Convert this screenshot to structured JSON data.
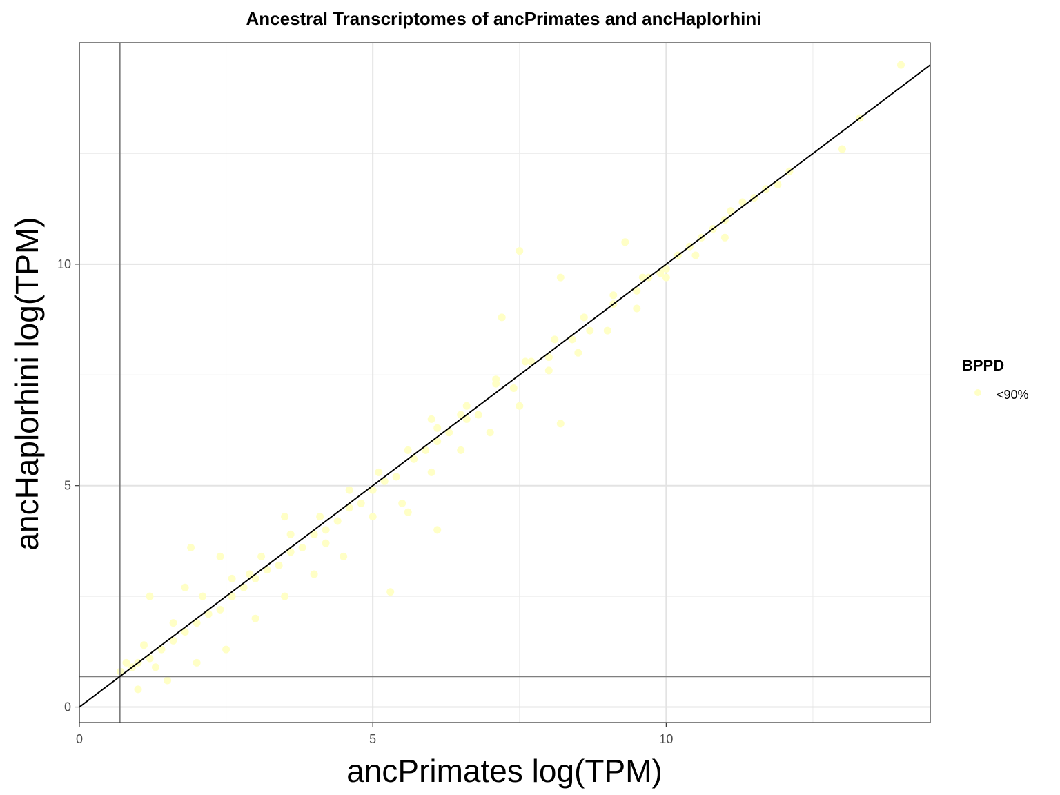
{
  "chart_data": {
    "type": "scatter",
    "title": "Ancestral Transcriptomes of ancPrimates and ancHaplorhini",
    "xlabel": "ancPrimates log(TPM)",
    "ylabel": "ancHaplorhini log(TPM)",
    "xlim": [
      0,
      14.5
    ],
    "ylim": [
      -0.35,
      15.0
    ],
    "x_ticks": [
      0,
      5,
      10
    ],
    "y_ticks": [
      0,
      5,
      10
    ],
    "x_tick_labels": [
      "0",
      "5",
      "10"
    ],
    "y_tick_labels": [
      "0",
      "5",
      "10"
    ],
    "grid": true,
    "reference_lines": {
      "diagonal": {
        "slope": 1,
        "intercept": 0
      },
      "vertical_x": 0.69,
      "horizontal_y": 0.69
    },
    "legend": {
      "title": "BPPD",
      "position": "right",
      "entries": [
        {
          "label": "<90%",
          "color": "#ffffc6"
        }
      ]
    },
    "series": [
      {
        "name": "<90%",
        "color": "#ffffc6",
        "points": [
          [
            14.0,
            14.5
          ],
          [
            13.3,
            13.3
          ],
          [
            13.0,
            12.6
          ],
          [
            12.1,
            12.1
          ],
          [
            11.9,
            11.8
          ],
          [
            11.7,
            11.7
          ],
          [
            11.5,
            11.5
          ],
          [
            11.3,
            11.4
          ],
          [
            11.1,
            11.2
          ],
          [
            11.0,
            11.0
          ],
          [
            10.8,
            10.8
          ],
          [
            10.6,
            10.6
          ],
          [
            10.4,
            10.4
          ],
          [
            10.2,
            10.2
          ],
          [
            10.0,
            9.9
          ],
          [
            9.9,
            9.8
          ],
          [
            9.7,
            9.7
          ],
          [
            9.5,
            9.4
          ],
          [
            9.3,
            10.5
          ],
          [
            7.5,
            10.3
          ],
          [
            8.2,
            9.7
          ],
          [
            7.2,
            8.8
          ],
          [
            8.2,
            6.4
          ],
          [
            5.3,
            2.6
          ],
          [
            6.1,
            4.0
          ],
          [
            5.6,
            4.4
          ],
          [
            1.2,
            2.5
          ],
          [
            1.8,
            2.7
          ],
          [
            1.9,
            3.6
          ],
          [
            2.4,
            3.4
          ],
          [
            2.9,
            3.0
          ],
          [
            3.5,
            4.3
          ],
          [
            4.2,
            3.7
          ],
          [
            6.0,
            6.5
          ],
          [
            6.5,
            6.6
          ],
          [
            9.1,
            9.1
          ],
          [
            8.7,
            8.5
          ],
          [
            8.4,
            8.3
          ],
          [
            8.0,
            7.9
          ],
          [
            7.7,
            7.8
          ],
          [
            7.4,
            7.2
          ],
          [
            7.1,
            7.3
          ],
          [
            6.8,
            6.6
          ],
          [
            6.6,
            6.5
          ],
          [
            6.3,
            6.2
          ],
          [
            6.1,
            6.0
          ],
          [
            5.9,
            5.8
          ],
          [
            5.7,
            5.6
          ],
          [
            5.4,
            5.2
          ],
          [
            5.2,
            5.1
          ],
          [
            5.0,
            4.9
          ],
          [
            4.8,
            4.6
          ],
          [
            4.6,
            4.5
          ],
          [
            4.4,
            4.2
          ],
          [
            4.2,
            4.0
          ],
          [
            4.0,
            3.9
          ],
          [
            3.8,
            3.6
          ],
          [
            3.6,
            3.5
          ],
          [
            3.4,
            3.2
          ],
          [
            3.2,
            3.1
          ],
          [
            3.0,
            2.9
          ],
          [
            2.8,
            2.7
          ],
          [
            2.6,
            2.5
          ],
          [
            2.4,
            2.2
          ],
          [
            2.2,
            2.1
          ],
          [
            2.0,
            1.9
          ],
          [
            1.8,
            1.7
          ],
          [
            1.6,
            1.5
          ],
          [
            1.4,
            1.3
          ],
          [
            1.2,
            1.1
          ],
          [
            1.0,
            1.0
          ],
          [
            0.9,
            0.9
          ],
          [
            0.8,
            1.0
          ],
          [
            0.7,
            0.8
          ],
          [
            1.0,
            0.4
          ],
          [
            1.5,
            0.6
          ],
          [
            1.3,
            0.9
          ],
          [
            2.0,
            1.0
          ],
          [
            2.5,
            1.3
          ],
          [
            3.0,
            2.0
          ],
          [
            3.5,
            2.5
          ],
          [
            4.0,
            3.0
          ],
          [
            4.5,
            3.4
          ],
          [
            5.0,
            4.3
          ],
          [
            5.5,
            4.6
          ],
          [
            6.0,
            5.3
          ],
          [
            6.5,
            5.8
          ],
          [
            7.0,
            6.2
          ],
          [
            7.5,
            6.8
          ],
          [
            8.0,
            7.6
          ],
          [
            8.5,
            8.0
          ],
          [
            9.0,
            8.5
          ],
          [
            9.5,
            9.0
          ],
          [
            10.0,
            9.7
          ],
          [
            10.5,
            10.2
          ],
          [
            11.0,
            10.6
          ],
          [
            1.1,
            1.4
          ],
          [
            1.6,
            1.9
          ],
          [
            2.1,
            2.5
          ],
          [
            2.6,
            2.9
          ],
          [
            3.1,
            3.4
          ],
          [
            3.6,
            3.9
          ],
          [
            4.1,
            4.3
          ],
          [
            4.6,
            4.9
          ],
          [
            5.1,
            5.3
          ],
          [
            5.6,
            5.8
          ],
          [
            6.1,
            6.3
          ],
          [
            6.6,
            6.8
          ],
          [
            7.1,
            7.4
          ],
          [
            7.6,
            7.8
          ],
          [
            8.1,
            8.3
          ],
          [
            8.6,
            8.8
          ],
          [
            9.1,
            9.3
          ],
          [
            9.6,
            9.7
          ]
        ]
      }
    ]
  }
}
